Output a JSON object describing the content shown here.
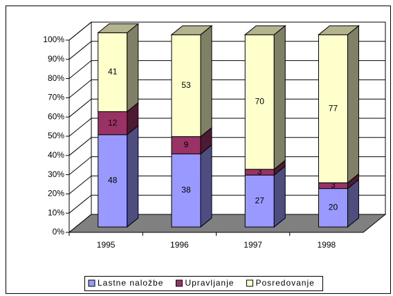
{
  "chart_data": {
    "type": "bar",
    "stacked": true,
    "categories": [
      "1995",
      "1996",
      "1997",
      "1998"
    ],
    "series": [
      {
        "name": "Lastne naložbe",
        "color": "#9999ff",
        "values": [
          48,
          38,
          27,
          20
        ]
      },
      {
        "name": "Upravljanje",
        "color": "#993366",
        "values": [
          12,
          9,
          3,
          3
        ]
      },
      {
        "name": "Posredovanje",
        "color": "#ffffcc",
        "values": [
          41,
          53,
          70,
          77
        ]
      }
    ],
    "ylim": [
      0,
      100
    ],
    "yticks": [
      {
        "value": 0,
        "label": "0%"
      },
      {
        "value": 10,
        "label": "10%"
      },
      {
        "value": 20,
        "label": "20%"
      },
      {
        "value": 30,
        "label": "30%"
      },
      {
        "value": 40,
        "label": "40%"
      },
      {
        "value": 50,
        "label": "50%"
      },
      {
        "value": 60,
        "label": "60%"
      },
      {
        "value": 70,
        "label": "70%"
      },
      {
        "value": 80,
        "label": "80%"
      },
      {
        "value": 90,
        "label": "90%"
      },
      {
        "value": 100,
        "label": "100%"
      }
    ],
    "grid": true,
    "legend": "bottom"
  }
}
